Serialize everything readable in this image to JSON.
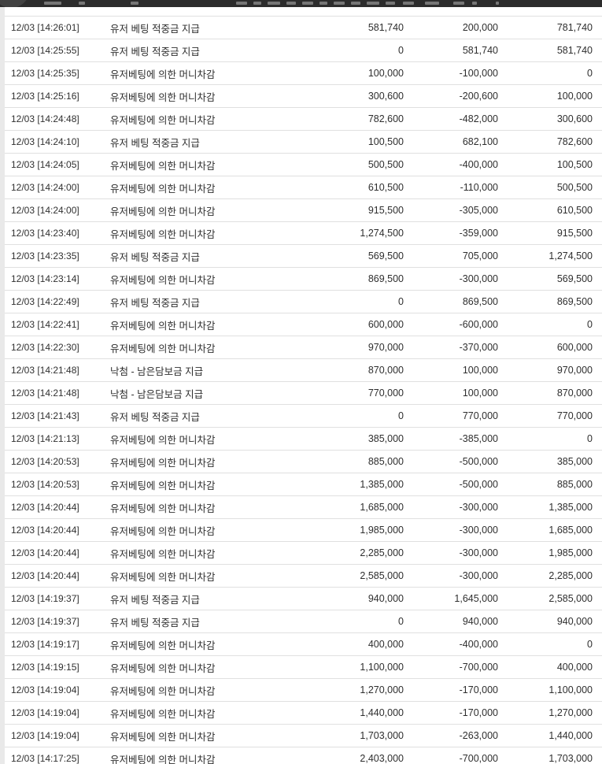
{
  "colors": {
    "topbar_background": "#2c2c2c",
    "row_divider": "#e0e0e0",
    "page_strip": "#e9e9e9",
    "text": "#2e2e2e"
  },
  "table": {
    "rows": [
      {
        "time": "12/03 [14:26:01]",
        "desc": "유저 베팅 적중금 지급",
        "before": "581,740",
        "change": "200,000",
        "after": "781,740"
      },
      {
        "time": "12/03 [14:25:55]",
        "desc": "유저 베팅 적중금 지급",
        "before": "0",
        "change": "581,740",
        "after": "581,740"
      },
      {
        "time": "12/03 [14:25:35]",
        "desc": "유저베팅에 의한 머니차감",
        "before": "100,000",
        "change": "-100,000",
        "after": "0"
      },
      {
        "time": "12/03 [14:25:16]",
        "desc": "유저베팅에 의한 머니차감",
        "before": "300,600",
        "change": "-200,600",
        "after": "100,000"
      },
      {
        "time": "12/03 [14:24:48]",
        "desc": "유저베팅에 의한 머니차감",
        "before": "782,600",
        "change": "-482,000",
        "after": "300,600"
      },
      {
        "time": "12/03 [14:24:10]",
        "desc": "유저 베팅 적중금 지급",
        "before": "100,500",
        "change": "682,100",
        "after": "782,600"
      },
      {
        "time": "12/03 [14:24:05]",
        "desc": "유저베팅에 의한 머니차감",
        "before": "500,500",
        "change": "-400,000",
        "after": "100,500"
      },
      {
        "time": "12/03 [14:24:00]",
        "desc": "유저베팅에 의한 머니차감",
        "before": "610,500",
        "change": "-110,000",
        "after": "500,500"
      },
      {
        "time": "12/03 [14:24:00]",
        "desc": "유저베팅에 의한 머니차감",
        "before": "915,500",
        "change": "-305,000",
        "after": "610,500"
      },
      {
        "time": "12/03 [14:23:40]",
        "desc": "유저베팅에 의한 머니차감",
        "before": "1,274,500",
        "change": "-359,000",
        "after": "915,500"
      },
      {
        "time": "12/03 [14:23:35]",
        "desc": "유저 베팅 적중금 지급",
        "before": "569,500",
        "change": "705,000",
        "after": "1,274,500"
      },
      {
        "time": "12/03 [14:23:14]",
        "desc": "유저베팅에 의한 머니차감",
        "before": "869,500",
        "change": "-300,000",
        "after": "569,500"
      },
      {
        "time": "12/03 [14:22:49]",
        "desc": "유저 베팅 적중금 지급",
        "before": "0",
        "change": "869,500",
        "after": "869,500"
      },
      {
        "time": "12/03 [14:22:41]",
        "desc": "유저베팅에 의한 머니차감",
        "before": "600,000",
        "change": "-600,000",
        "after": "0"
      },
      {
        "time": "12/03 [14:22:30]",
        "desc": "유저베팅에 의한 머니차감",
        "before": "970,000",
        "change": "-370,000",
        "after": "600,000"
      },
      {
        "time": "12/03 [14:21:48]",
        "desc": "낙첨 - 남은담보금 지급",
        "before": "870,000",
        "change": "100,000",
        "after": "970,000"
      },
      {
        "time": "12/03 [14:21:48]",
        "desc": "낙첨 - 남은담보금 지급",
        "before": "770,000",
        "change": "100,000",
        "after": "870,000"
      },
      {
        "time": "12/03 [14:21:43]",
        "desc": "유저 베팅 적중금 지급",
        "before": "0",
        "change": "770,000",
        "after": "770,000"
      },
      {
        "time": "12/03 [14:21:13]",
        "desc": "유저베팅에 의한 머니차감",
        "before": "385,000",
        "change": "-385,000",
        "after": "0"
      },
      {
        "time": "12/03 [14:20:53]",
        "desc": "유저베팅에 의한 머니차감",
        "before": "885,000",
        "change": "-500,000",
        "after": "385,000"
      },
      {
        "time": "12/03 [14:20:53]",
        "desc": "유저베팅에 의한 머니차감",
        "before": "1,385,000",
        "change": "-500,000",
        "after": "885,000"
      },
      {
        "time": "12/03 [14:20:44]",
        "desc": "유저베팅에 의한 머니차감",
        "before": "1,685,000",
        "change": "-300,000",
        "after": "1,385,000"
      },
      {
        "time": "12/03 [14:20:44]",
        "desc": "유저베팅에 의한 머니차감",
        "before": "1,985,000",
        "change": "-300,000",
        "after": "1,685,000"
      },
      {
        "time": "12/03 [14:20:44]",
        "desc": "유저베팅에 의한 머니차감",
        "before": "2,285,000",
        "change": "-300,000",
        "after": "1,985,000"
      },
      {
        "time": "12/03 [14:20:44]",
        "desc": "유저베팅에 의한 머니차감",
        "before": "2,585,000",
        "change": "-300,000",
        "after": "2,285,000"
      },
      {
        "time": "12/03 [14:19:37]",
        "desc": "유저 베팅 적중금 지급",
        "before": "940,000",
        "change": "1,645,000",
        "after": "2,585,000"
      },
      {
        "time": "12/03 [14:19:37]",
        "desc": "유저 베팅 적중금 지급",
        "before": "0",
        "change": "940,000",
        "after": "940,000"
      },
      {
        "time": "12/03 [14:19:17]",
        "desc": "유저베팅에 의한 머니차감",
        "before": "400,000",
        "change": "-400,000",
        "after": "0"
      },
      {
        "time": "12/03 [14:19:15]",
        "desc": "유저베팅에 의한 머니차감",
        "before": "1,100,000",
        "change": "-700,000",
        "after": "400,000"
      },
      {
        "time": "12/03 [14:19:04]",
        "desc": "유저베팅에 의한 머니차감",
        "before": "1,270,000",
        "change": "-170,000",
        "after": "1,100,000"
      },
      {
        "time": "12/03 [14:19:04]",
        "desc": "유저베팅에 의한 머니차감",
        "before": "1,440,000",
        "change": "-170,000",
        "after": "1,270,000"
      },
      {
        "time": "12/03 [14:19:04]",
        "desc": "유저베팅에 의한 머니차감",
        "before": "1,703,000",
        "change": "-263,000",
        "after": "1,440,000"
      },
      {
        "time": "12/03 [14:17:25]",
        "desc": "유저베팅에 의한 머니차감",
        "before": "2,403,000",
        "change": "-700,000",
        "after": "1,703,000"
      }
    ]
  }
}
